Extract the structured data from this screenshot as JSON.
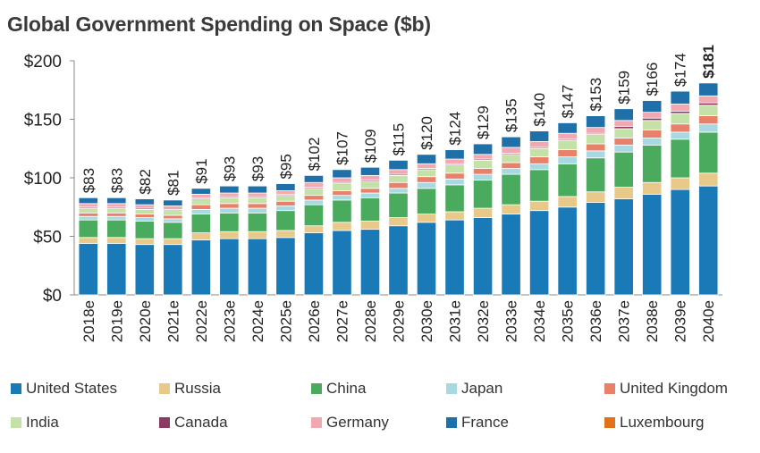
{
  "title": "Global Government Spending on Space ($b)",
  "chart_data": {
    "type": "bar",
    "stacked": true,
    "title": "Global Government Spending on Space ($b)",
    "xlabel": "",
    "ylabel": "",
    "ylim": [
      0,
      200
    ],
    "yticks": [
      "$0",
      "$50",
      "$100",
      "$150",
      "$200"
    ],
    "grid": false,
    "legend_position": "bottom",
    "categories": [
      "2018e",
      "2019e",
      "2020e",
      "2021e",
      "2022e",
      "2023e",
      "2024e",
      "2025e",
      "2026e",
      "2027e",
      "2028e",
      "2029e",
      "2030e",
      "2031e",
      "2032e",
      "2033e",
      "2034e",
      "2035e",
      "2036e",
      "2037e",
      "2038e",
      "2039e",
      "2040e"
    ],
    "totals": [
      83,
      83,
      82,
      81,
      91,
      93,
      93,
      95,
      102,
      107,
      109,
      115,
      120,
      124,
      129,
      135,
      140,
      147,
      153,
      159,
      166,
      174,
      181
    ],
    "total_labels": [
      "$83",
      "$83",
      "$82",
      "$81",
      "$91",
      "$93",
      "$93",
      "$95",
      "$102",
      "$107",
      "$109",
      "$115",
      "$120",
      "$124",
      "$129",
      "$135",
      "$140",
      "$147",
      "$153",
      "$159",
      "$166",
      "$174",
      "$181"
    ],
    "series": [
      {
        "name": "United States",
        "color": "#1a7ab8",
        "values": [
          44,
          44,
          43,
          43,
          47,
          48,
          48,
          49,
          53,
          55,
          56,
          59,
          62,
          64,
          66,
          69,
          72,
          75,
          79,
          82,
          86,
          90,
          93
        ]
      },
      {
        "name": "Russia",
        "color": "#e8c98a",
        "values": [
          5,
          5,
          5,
          5,
          6,
          6,
          6,
          6,
          6,
          7,
          7,
          7,
          7,
          7,
          8,
          8,
          8,
          9,
          9,
          10,
          10,
          10,
          11
        ]
      },
      {
        "name": "China",
        "color": "#4aab5e",
        "values": [
          15,
          15,
          15,
          14,
          16,
          16,
          16,
          17,
          18,
          19,
          20,
          21,
          22,
          23,
          24,
          26,
          27,
          28,
          29,
          30,
          32,
          33,
          35
        ]
      },
      {
        "name": "Japan",
        "color": "#a8d8e2",
        "values": [
          3,
          3,
          3,
          3,
          4,
          4,
          4,
          4,
          4,
          4,
          4,
          4,
          5,
          5,
          5,
          5,
          5,
          6,
          6,
          6,
          6,
          6,
          7
        ]
      },
      {
        "name": "United Kingdom",
        "color": "#e8806a",
        "values": [
          3,
          3,
          3,
          3,
          4,
          4,
          4,
          4,
          4,
          4,
          4,
          5,
          5,
          5,
          5,
          5,
          6,
          6,
          6,
          6,
          7,
          7,
          7
        ]
      },
      {
        "name": "India",
        "color": "#c4e2a8",
        "values": [
          4,
          4,
          4,
          4,
          5,
          5,
          5,
          5,
          6,
          6,
          6,
          6,
          6,
          7,
          7,
          7,
          7,
          8,
          8,
          8,
          8,
          9,
          9
        ]
      },
      {
        "name": "Canada",
        "color": "#8b3a62",
        "values": [
          1,
          1,
          1,
          1,
          1,
          1,
          1,
          1,
          1,
          1,
          1,
          1,
          1,
          1,
          1,
          1,
          1,
          1,
          1,
          2,
          2,
          2,
          2
        ]
      },
      {
        "name": "Germany",
        "color": "#f2a8b0",
        "values": [
          3,
          3,
          3,
          3,
          3,
          3,
          3,
          3,
          4,
          4,
          4,
          4,
          4,
          4,
          4,
          5,
          5,
          5,
          5,
          5,
          5,
          6,
          6
        ]
      },
      {
        "name": "France",
        "color": "#1f6fa8",
        "values": [
          5,
          5,
          5,
          5,
          5,
          6,
          6,
          6,
          6,
          7,
          7,
          8,
          8,
          8,
          9,
          9,
          9,
          9,
          10,
          10,
          10,
          11,
          11
        ]
      },
      {
        "name": "Luxembourg",
        "color": "#e0701a",
        "values": [
          0,
          0,
          0,
          0,
          0,
          0,
          0,
          0,
          0,
          0,
          0,
          0,
          0,
          0,
          0,
          0,
          0,
          0,
          0,
          0,
          0,
          0,
          0
        ]
      }
    ]
  }
}
